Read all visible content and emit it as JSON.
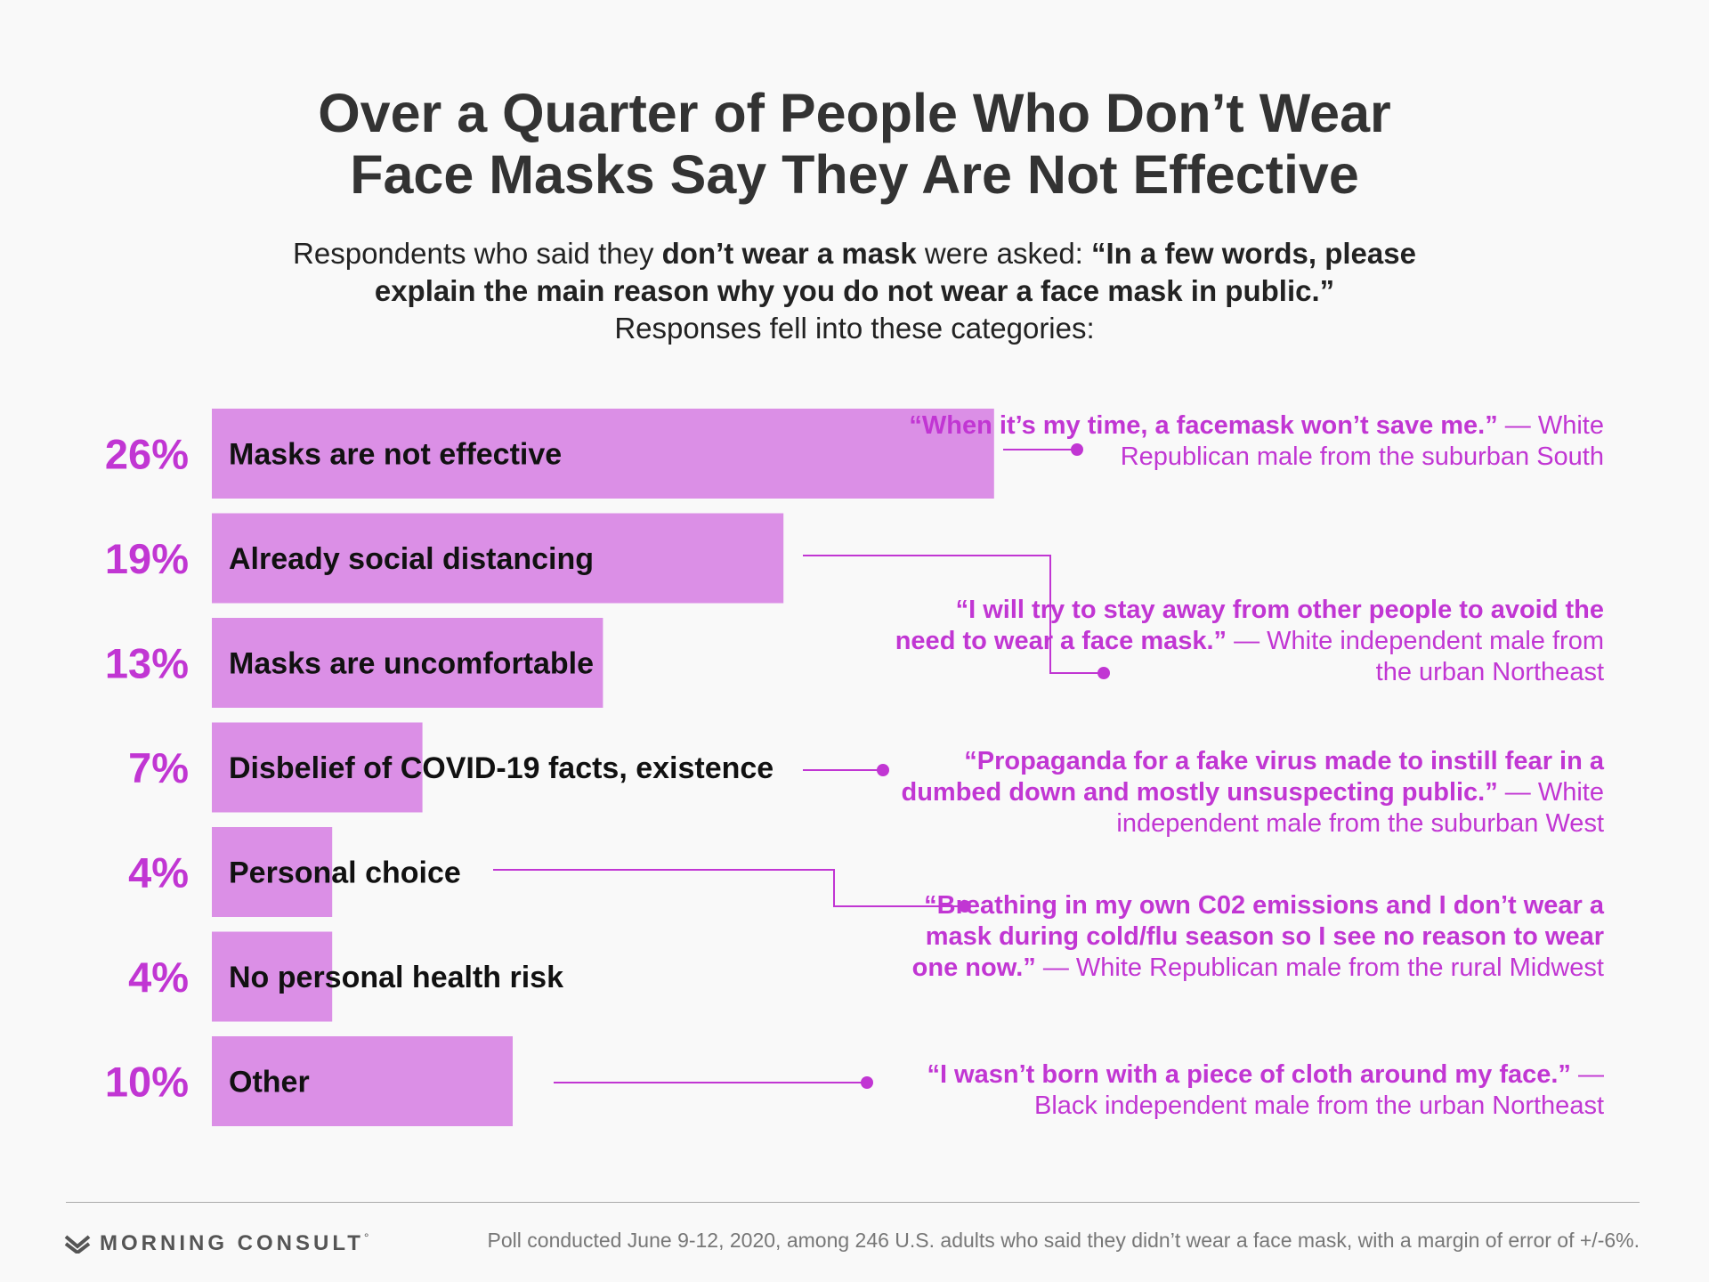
{
  "title": {
    "line1": "Over a Quarter of People Who Don’t Wear",
    "line2": "Face Masks Say They Are Not Effective"
  },
  "subtitle": {
    "p1": "Respondents who said they ",
    "p2": "don’t wear a mask",
    "p3": " were asked: ",
    "p4": "“In a few words, please",
    "p5": "explain the main reason why you do not wear a face mask in public.”",
    "p6": "Responses fell into these categories:"
  },
  "chart_data": {
    "type": "bar",
    "orientation": "horizontal",
    "unit": "%",
    "categories": [
      "Masks are not effective",
      "Already social distancing",
      "Masks are uncomfortable",
      "Disbelief of COVID-19 facts, existence",
      "Personal choice",
      "No personal health risk",
      "Other"
    ],
    "values": [
      26,
      19,
      13,
      7,
      4,
      4,
      10
    ],
    "value_labels": [
      "26%",
      "19%",
      "13%",
      "7%",
      "4%",
      "4%",
      "10%"
    ],
    "bar_color": "#db8fe6",
    "label_color": "#c136d3"
  },
  "quotes": [
    {
      "bold": "“When it’s my time, a facemask won’t save me.”",
      "rest": " — White Republican male from the suburban South"
    },
    {
      "bold": "“I will try to stay away from other people to avoid the need to wear a face mask.”",
      "rest": " — White independent male from the urban Northeast"
    },
    {
      "bold": "“Propaganda for a fake virus made to instill fear in a dumbed down and mostly unsuspecting public.”",
      "rest": " — White independent male from the suburban West"
    },
    {
      "bold": "“Breathing in my own C02 emissions and I don’t wear a mask during cold/flu season so I see no reason to wear one now.”",
      "rest": " — White Republican male from the rural Midwest"
    },
    {
      "bold": "“I wasn’t born with a piece of cloth around my face.”",
      "rest": " — Black independent male from the urban Northeast"
    }
  ],
  "footer": {
    "brand": "MORNING CONSULT",
    "trademark": "°",
    "source": "Poll conducted June 9-12, 2020, among 246 U.S. adults who said they didn’t wear a face mask, with a margin of error of +/-6%."
  },
  "colors": {
    "accent": "#c136d3",
    "bar": "#db8fe6",
    "text": "#333333"
  }
}
